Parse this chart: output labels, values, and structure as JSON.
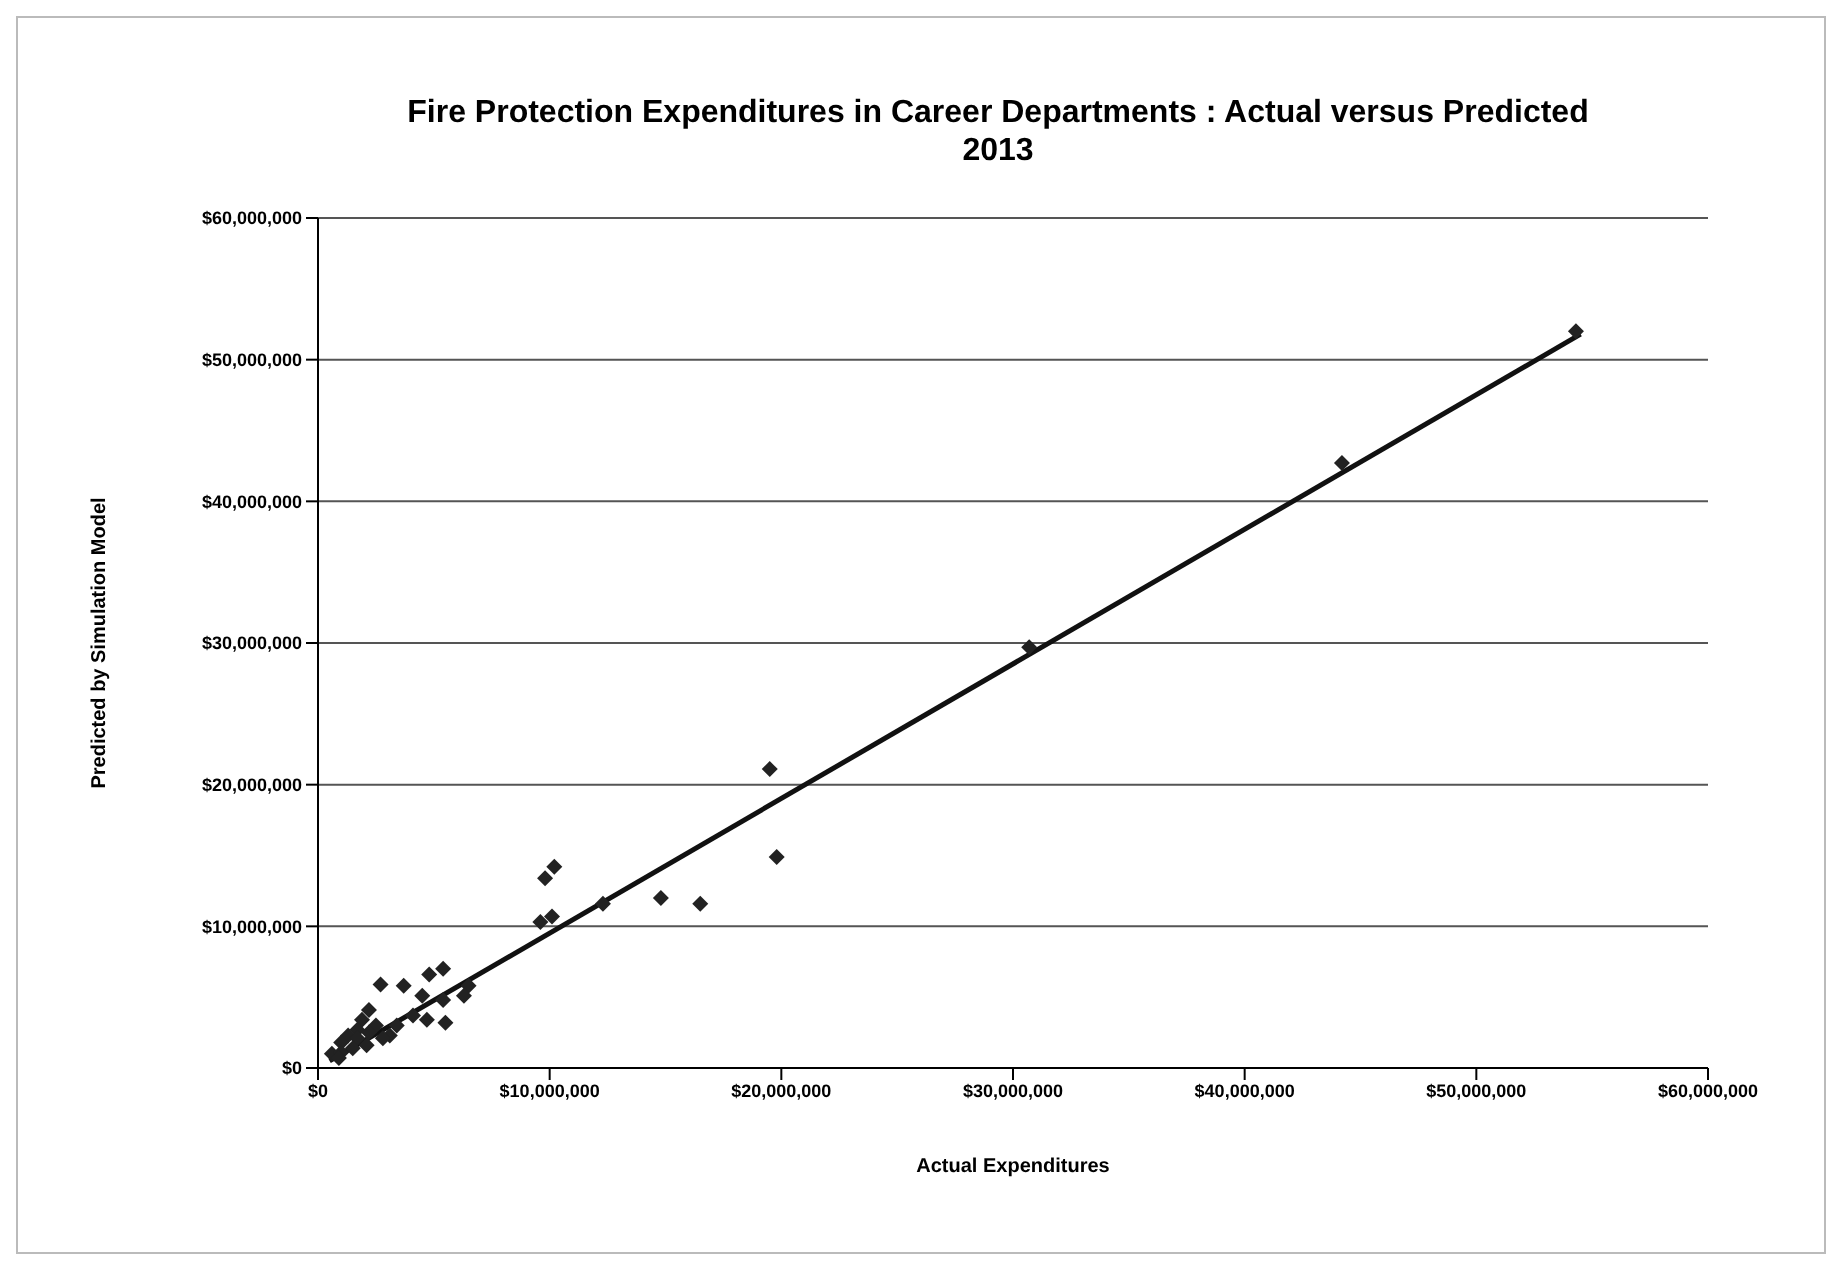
{
  "chart_data": {
    "type": "scatter",
    "title": "Fire Protection Expenditures in Career Departments : Actual versus Predicted\n2013",
    "xlabel": "Actual Expenditures",
    "ylabel": "Predicted by Simulation Model",
    "xlim": [
      0,
      60000000
    ],
    "ylim": [
      0,
      60000000
    ],
    "xticks": [
      {
        "value": 0,
        "label": "$0"
      },
      {
        "value": 10000000,
        "label": "$10,000,000"
      },
      {
        "value": 20000000,
        "label": "$20,000,000"
      },
      {
        "value": 30000000,
        "label": "$30,000,000"
      },
      {
        "value": 40000000,
        "label": "$40,000,000"
      },
      {
        "value": 50000000,
        "label": "$50,000,000"
      },
      {
        "value": 60000000,
        "label": "$60,000,000"
      }
    ],
    "yticks": [
      {
        "value": 0,
        "label": "$0"
      },
      {
        "value": 10000000,
        "label": "$10,000,000"
      },
      {
        "value": 20000000,
        "label": "$20,000,000"
      },
      {
        "value": 30000000,
        "label": "$30,000,000"
      },
      {
        "value": 40000000,
        "label": "$40,000,000"
      },
      {
        "value": 50000000,
        "label": "$50,000,000"
      },
      {
        "value": 60000000,
        "label": "$60,000,000"
      }
    ],
    "grid": "y",
    "marker": "diamond",
    "series": [
      {
        "color": "#222222",
        "x": [
          54300000,
          44200000,
          30700000,
          19500000,
          19800000,
          16500000,
          14800000,
          12300000,
          10200000,
          9800000,
          10100000,
          9600000,
          5400000,
          4800000,
          6500000,
          6300000,
          3700000,
          2700000,
          5400000,
          4500000,
          5500000,
          4700000,
          4100000,
          3100000,
          3400000,
          2200000,
          1900000,
          1700000,
          1300000,
          1000000,
          800000,
          600000,
          2500000,
          2200000,
          2800000,
          1700000,
          1500000,
          1000000,
          2100000,
          900000
        ],
        "values": [
          52000000,
          42700000,
          29700000,
          21100000,
          14900000,
          11600000,
          12000000,
          11600000,
          14200000,
          13400000,
          10700000,
          10300000,
          7000000,
          6600000,
          5800000,
          5100000,
          5800000,
          5900000,
          4800000,
          5100000,
          3200000,
          3400000,
          3700000,
          2300000,
          3000000,
          4100000,
          3400000,
          2700000,
          2300000,
          1800000,
          null,
          1000000,
          3000000,
          2500000,
          2100000,
          2100000,
          1400000,
          1100000,
          1600000,
          700000
        ]
      },
      {
        "type": "line",
        "color": "#111111",
        "marker": "none",
        "line_style": "solid",
        "x": [
          500000,
          54500000
        ],
        "values": [
          500000,
          51800000
        ]
      }
    ]
  }
}
